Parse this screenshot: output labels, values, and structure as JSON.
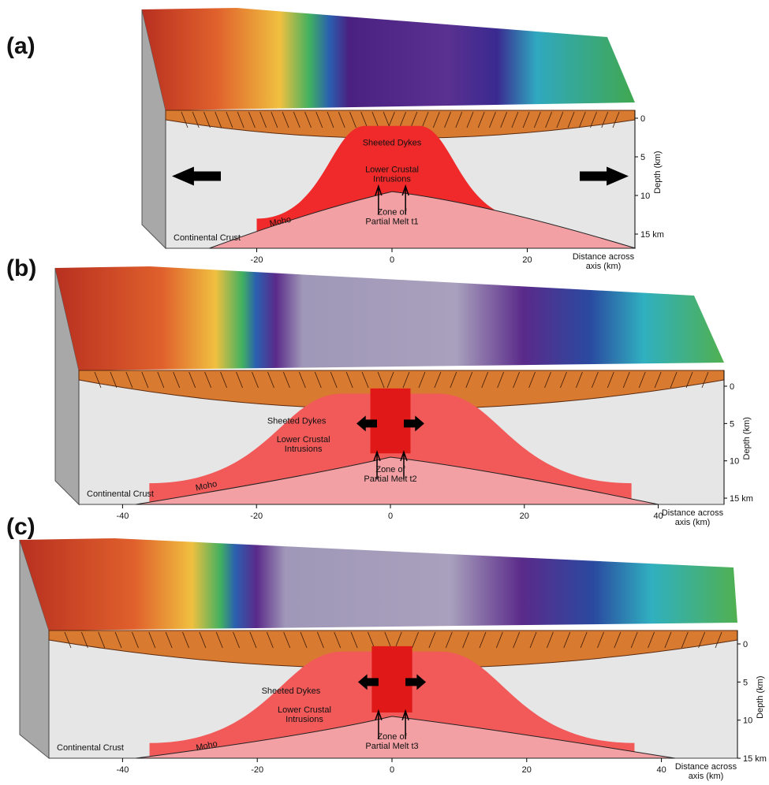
{
  "panels": [
    {
      "label": "(a)",
      "sheeted_dykes": "Sheeted Dykes",
      "lower_crustal": [
        "Lower Crustal",
        "Intrusions"
      ],
      "melt_zone": [
        "Zone of",
        "Partial Melt t1"
      ],
      "continental_crust": "Continental Crust",
      "moho": "Moho",
      "depth_axis_title": "Depth (km)",
      "depth_ticks": [
        "0",
        "5",
        "10",
        "15 km"
      ],
      "distance_ticks": [
        "-20",
        "0",
        "20"
      ],
      "distance_axis_title": [
        "Distance across",
        "axis (km)"
      ]
    },
    {
      "label": "(b)",
      "sheeted_dykes": "Sheeted Dykes",
      "lower_crustal": [
        "Lower Crustal",
        "Intrusions"
      ],
      "melt_zone": [
        "Zone of",
        "Partial Melt t2"
      ],
      "continental_crust": "Continental Crust",
      "moho": "Moho",
      "depth_axis_title": "Depth (km)",
      "depth_ticks": [
        "0",
        "5",
        "10",
        "15 km"
      ],
      "distance_ticks": [
        "-40",
        "-20",
        "0",
        "20",
        "40"
      ],
      "distance_axis_title": [
        "Distance across",
        "axis (km)"
      ]
    },
    {
      "label": "(c)",
      "sheeted_dykes": "Sheeted Dykes",
      "lower_crustal": [
        "Lower Crustal",
        "Intrusions"
      ],
      "melt_zone": [
        "Zone of",
        "Partial Melt t3"
      ],
      "continental_crust": "Continental Crust",
      "moho": "Moho",
      "depth_axis_title": "Depth (km)",
      "depth_ticks": [
        "0",
        "5",
        "10",
        "15 km"
      ],
      "distance_ticks": [
        "-40",
        "-20",
        "0",
        "20",
        "40"
      ],
      "distance_axis_title": [
        "Distance across",
        "axis (km)"
      ]
    }
  ]
}
